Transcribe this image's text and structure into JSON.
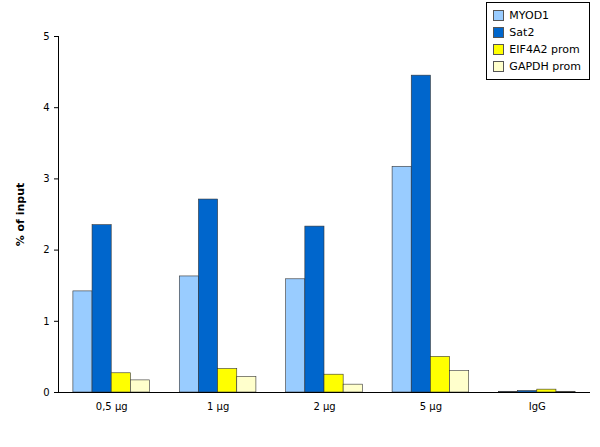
{
  "chart_data": {
    "type": "bar",
    "categories": [
      "0,5 µg",
      "1 µg",
      "2 µg",
      "5 µg",
      "IgG"
    ],
    "series": [
      {
        "name": "MYOD1",
        "color": "#99ccff",
        "values": [
          1.42,
          1.63,
          1.59,
          3.17,
          0.01
        ]
      },
      {
        "name": "Sat2",
        "color": "#0066cc",
        "values": [
          2.35,
          2.71,
          2.33,
          4.45,
          0.02
        ]
      },
      {
        "name": "EIF4A2 prom",
        "color": "#ffff00",
        "values": [
          0.27,
          0.33,
          0.25,
          0.5,
          0.04
        ]
      },
      {
        "name": "GAPDH prom",
        "color": "#ffffcc",
        "values": [
          0.17,
          0.22,
          0.11,
          0.3,
          0.01
        ]
      }
    ],
    "y_label": "% of input",
    "ylim": [
      0,
      5
    ],
    "yticks": [
      0,
      1,
      2,
      3,
      4,
      5
    ],
    "grid": false,
    "legend": "top-right"
  }
}
